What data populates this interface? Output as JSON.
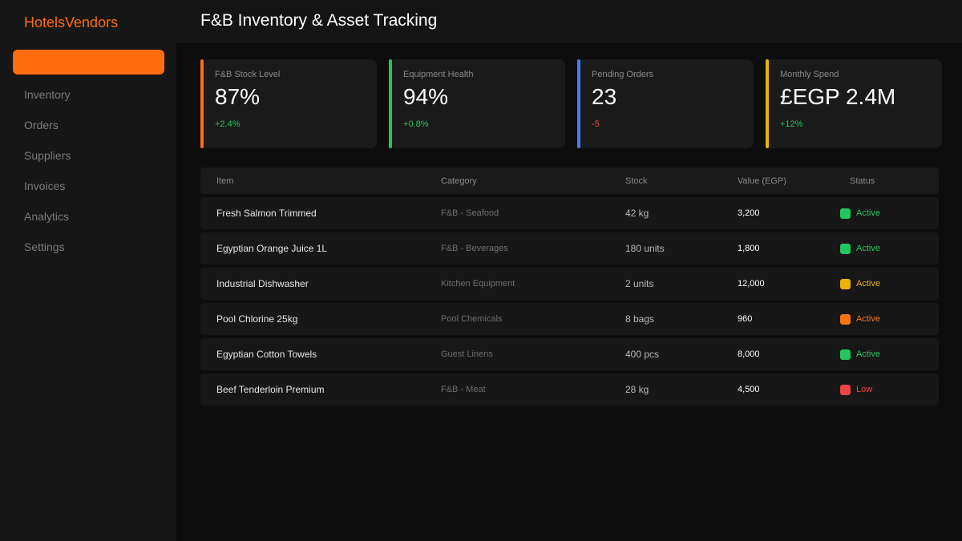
{
  "brand": "HotelsVendors",
  "sidebar": {
    "items": [
      {
        "label": "Inventory"
      },
      {
        "label": "Orders"
      },
      {
        "label": "Suppliers"
      },
      {
        "label": "Invoices"
      },
      {
        "label": "Analytics"
      },
      {
        "label": "Settings"
      }
    ]
  },
  "header": {
    "title": "F&B Inventory & Asset Tracking"
  },
  "cards": [
    {
      "label": "F&B Stock Level",
      "value": "87%",
      "change": "+2.4%",
      "accent": "#ff6b0f",
      "change_color": "#22c55e"
    },
    {
      "label": "Equipment Health",
      "value": "94%",
      "change": "+0.8%",
      "accent": "#22c55e",
      "change_color": "#22c55e"
    },
    {
      "label": "Pending Orders",
      "value": "23",
      "change": "-5",
      "accent": "#3b82f6",
      "change_color": "#ef4444"
    },
    {
      "label": "Monthly Spend",
      "value": "£EGP 2.4M",
      "change": "+12%",
      "accent": "#eab308",
      "change_color": "#22c55e"
    }
  ],
  "table": {
    "headers": {
      "item": "Item",
      "category": "Category",
      "stock": "Stock",
      "value": "Value (EGP)",
      "status": "Status"
    },
    "rows": [
      {
        "item": "Fresh Salmon Trimmed",
        "category": "F&B - Seafood",
        "stock": "42 kg",
        "value": "3,200",
        "status": "Active",
        "status_color": "#22c55e"
      },
      {
        "item": "Egyptian Orange Juice 1L",
        "category": "F&B - Beverages",
        "stock": "180 units",
        "value": "1,800",
        "status": "Active",
        "status_color": "#22c55e"
      },
      {
        "item": "Industrial Dishwasher",
        "category": "Kitchen Equipment",
        "stock": "2 units",
        "value": "12,000",
        "status": "Active",
        "status_color": "#eab308"
      },
      {
        "item": "Pool Chlorine 25kg",
        "category": "Pool Chemicals",
        "stock": "8 bags",
        "value": "960",
        "status": "Active",
        "status_color": "#f97316"
      },
      {
        "item": "Egyptian Cotton Towels",
        "category": "Guest Linens",
        "stock": "400 pcs",
        "value": "8,000",
        "status": "Active",
        "status_color": "#22c55e"
      },
      {
        "item": "Beef Tenderloin Premium",
        "category": "F&B - Meat",
        "stock": "28 kg",
        "value": "4,500",
        "status": "Low",
        "status_color": "#ef4444"
      }
    ]
  }
}
